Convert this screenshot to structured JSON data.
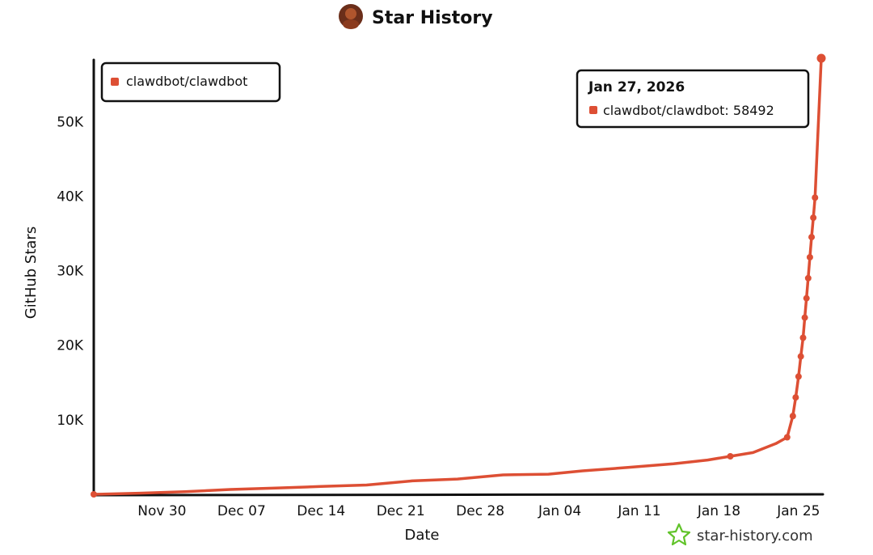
{
  "header": {
    "title": "Star History",
    "avatar_icon": "repo-owner-avatar"
  },
  "colors": {
    "series": "#dd4f34",
    "axis": "#111111",
    "brand_icon": "#61c32a"
  },
  "chart_data": {
    "type": "line",
    "title": "Star History",
    "xlabel": "Date",
    "ylabel": "GitHub Stars",
    "xlim": [
      "2025-11-24",
      "2026-01-27"
    ],
    "ylim": [
      0,
      58492
    ],
    "x_ticks": [
      "Nov 30",
      "Dec 07",
      "Dec 14",
      "Dec 21",
      "Dec 28",
      "Jan 04",
      "Jan 11",
      "Jan 18",
      "Jan 25"
    ],
    "x_tick_dates": [
      "2025-11-30",
      "2025-12-07",
      "2025-12-14",
      "2025-12-21",
      "2025-12-28",
      "2026-01-04",
      "2026-01-11",
      "2026-01-18",
      "2026-01-25"
    ],
    "y_ticks": [
      10000,
      20000,
      30000,
      40000,
      50000
    ],
    "y_tick_labels": [
      "10K",
      "20K",
      "30K",
      "40K",
      "50K"
    ],
    "grid": false,
    "legend_position": "top-left",
    "series": [
      {
        "name": "clawdbot/clawdbot",
        "color": "#dd4f34",
        "points": [
          [
            "2025-11-24",
            0
          ],
          [
            "2025-11-28",
            150
          ],
          [
            "2025-12-02",
            350
          ],
          [
            "2025-12-06",
            650
          ],
          [
            "2025-12-10",
            850
          ],
          [
            "2025-12-14",
            1050
          ],
          [
            "2025-12-18",
            1250
          ],
          [
            "2025-12-22",
            1800
          ],
          [
            "2025-12-26",
            2050
          ],
          [
            "2025-12-30",
            2600
          ],
          [
            "2026-01-03",
            2700
          ],
          [
            "2026-01-06",
            3150
          ],
          [
            "2026-01-10",
            3600
          ],
          [
            "2026-01-14",
            4100
          ],
          [
            "2026-01-17",
            4600
          ],
          [
            "2026-01-19",
            5100
          ],
          [
            "2026-01-21",
            5600
          ],
          [
            "2026-01-23",
            6800
          ],
          [
            "2026-01-24",
            7650
          ],
          [
            "2026-01-24.5",
            10500
          ],
          [
            "2026-01-24.75",
            13000
          ],
          [
            "2026-01-25",
            15800
          ],
          [
            "2026-01-25.2",
            18500
          ],
          [
            "2026-01-25.4",
            21000
          ],
          [
            "2026-01-25.55",
            23700
          ],
          [
            "2026-01-25.7",
            26300
          ],
          [
            "2026-01-25.85",
            29000
          ],
          [
            "2026-01-26",
            31800
          ],
          [
            "2026-01-26.15",
            34500
          ],
          [
            "2026-01-26.3",
            37100
          ],
          [
            "2026-01-26.45",
            39800
          ],
          [
            "2026-01-27",
            58492
          ]
        ],
        "markers": [
          "2025-11-24",
          "2026-01-19",
          "2026-01-24",
          "2026-01-24.5",
          "2026-01-24.75",
          "2026-01-25",
          "2026-01-25.2",
          "2026-01-25.4",
          "2026-01-25.55",
          "2026-01-25.7",
          "2026-01-25.85",
          "2026-01-26",
          "2026-01-26.15",
          "2026-01-26.3",
          "2026-01-26.45",
          "2026-01-27"
        ]
      }
    ],
    "tooltip": {
      "date": "Jan 27, 2026",
      "label": "clawdbot/clawdbot: 58492"
    }
  },
  "legend": {
    "items": [
      {
        "label": "clawdbot/clawdbot",
        "color": "#dd4f34"
      }
    ]
  },
  "footer": {
    "brand_text": "star-history.com",
    "brand_icon": "star-outline-icon"
  }
}
